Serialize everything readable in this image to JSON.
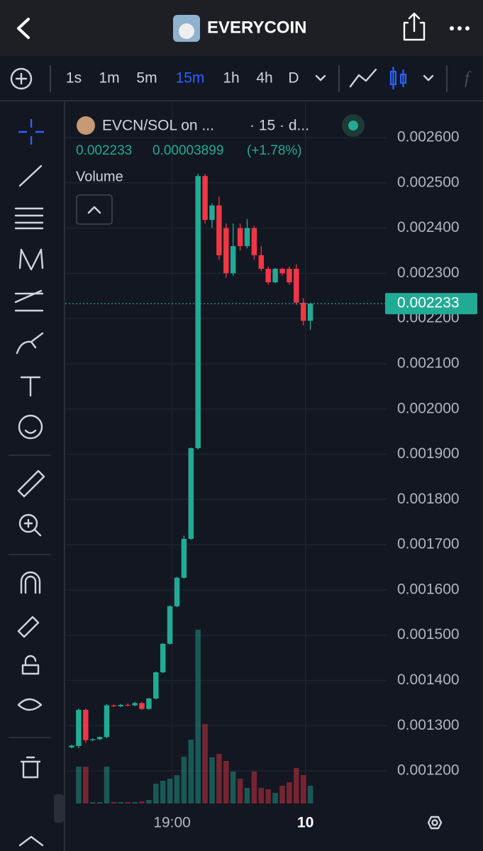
{
  "header": {
    "title": "EVERYCOIN"
  },
  "toolbar": {
    "intervals": [
      "1s",
      "1m",
      "5m",
      "15m",
      "1h",
      "4h",
      "D"
    ],
    "active_interval": 3
  },
  "chart_data": {
    "type": "candlestick",
    "legend": {
      "symbol": "EVCN/SOL on ...",
      "interval": "· 15 · d...",
      "last": "0.002233",
      "change": "0.00003899",
      "change_pct": "(+1.78%)"
    },
    "volume_label": "Volume",
    "up_color": "#22ab94",
    "down_color": "#f23645",
    "categories": [
      null,
      null,
      null,
      null,
      null,
      null,
      null,
      null,
      null,
      null,
      null,
      null,
      null,
      null,
      "19:00",
      null,
      null,
      null,
      null,
      null,
      null,
      null,
      null,
      null,
      null,
      null,
      null,
      null,
      null,
      null,
      null,
      null,
      null,
      "10",
      null
    ],
    "open": [
      0.001252,
      0.001255,
      0.001335,
      0.001268,
      0.00127,
      0.001275,
      0.001345,
      0.001343,
      0.001346,
      0.001345,
      0.00135,
      0.001337,
      0.00136,
      0.001418,
      0.001481,
      0.001564,
      0.001627,
      0.001713,
      0.0019135,
      0.002515,
      0.002418,
      0.00245,
      0.0024,
      0.0023,
      0.0024,
      0.00236,
      0.0024,
      0.00234,
      0.00231,
      0.00228,
      0.00231,
      0.00231,
      0.00231,
      0.002235,
      0.002195
    ],
    "high": [
      0.001258,
      0.001338,
      0.001338,
      0.001272,
      0.001276,
      0.001348,
      0.001347,
      0.001348,
      0.001349,
      0.001353,
      0.001352,
      0.001362,
      0.00142,
      0.001483,
      0.001566,
      0.001629,
      0.00172,
      0.001915,
      0.00252,
      0.00252,
      0.002455,
      0.00247,
      0.00241,
      0.00241,
      0.00241,
      0.00242,
      0.002405,
      0.00236,
      0.002315,
      0.002312,
      0.002312,
      0.002315,
      0.00232,
      0.002245,
      0.002235
    ],
    "low": [
      0.00125,
      0.00125,
      0.001262,
      0.001266,
      0.001268,
      0.001272,
      0.001341,
      0.001341,
      0.001343,
      0.001343,
      0.001335,
      0.001335,
      0.001358,
      0.001416,
      0.001479,
      0.001562,
      0.001625,
      0.001711,
      0.00191,
      0.00241,
      0.0024,
      0.00233,
      0.00229,
      0.002295,
      0.00235,
      0.002355,
      0.00233,
      0.002305,
      0.002275,
      0.002278,
      0.002295,
      0.002275,
      0.00223,
      0.002185,
      0.002175
    ],
    "close": [
      0.001256,
      0.001335,
      0.001268,
      0.00127,
      0.001275,
      0.001345,
      0.001343,
      0.001346,
      0.001345,
      0.00135,
      0.001337,
      0.00136,
      0.001418,
      0.001481,
      0.001564,
      0.001627,
      0.001713,
      0.0019135,
      0.002515,
      0.002418,
      0.00245,
      0.00234,
      0.0023,
      0.00236,
      0.00236,
      0.0024,
      0.00234,
      0.00231,
      0.00228,
      0.00231,
      0.0023,
      0.00228,
      0.002235,
      0.002195,
      0.002233
    ],
    "volume": [
      0,
      52,
      52,
      2,
      2,
      52,
      2,
      2,
      2,
      2,
      3,
      5,
      28,
      32,
      35,
      40,
      66,
      90,
      245,
      112,
      65,
      70,
      60,
      45,
      35,
      22,
      45,
      22,
      20,
      15,
      25,
      30,
      50,
      40,
      25
    ],
    "ylim": [
      0.001128,
      0.002669
    ],
    "yticks": [
      {
        "value": 0.0012,
        "label": "0.001200"
      },
      {
        "value": 0.0013,
        "label": "0.001300"
      },
      {
        "value": 0.0014,
        "label": "0.001400"
      },
      {
        "value": 0.0015,
        "label": "0.001500"
      },
      {
        "value": 0.0016,
        "label": "0.001600"
      },
      {
        "value": 0.0017,
        "label": "0.001700"
      },
      {
        "value": 0.0018,
        "label": "0.001800"
      },
      {
        "value": 0.0019,
        "label": "0.001900"
      },
      {
        "value": 0.002,
        "label": "0.002000"
      },
      {
        "value": 0.0021,
        "label": "0.002100"
      },
      {
        "value": 0.0022,
        "label": "0.002200"
      },
      {
        "value": 0.0023,
        "label": "0.002300"
      },
      {
        "value": 0.0024,
        "label": "0.002400"
      },
      {
        "value": 0.0025,
        "label": "0.002500"
      },
      {
        "value": 0.0026,
        "label": "0.002600"
      }
    ],
    "last_price": {
      "value": 0.002233,
      "label": "0.002233"
    },
    "grid": true
  }
}
